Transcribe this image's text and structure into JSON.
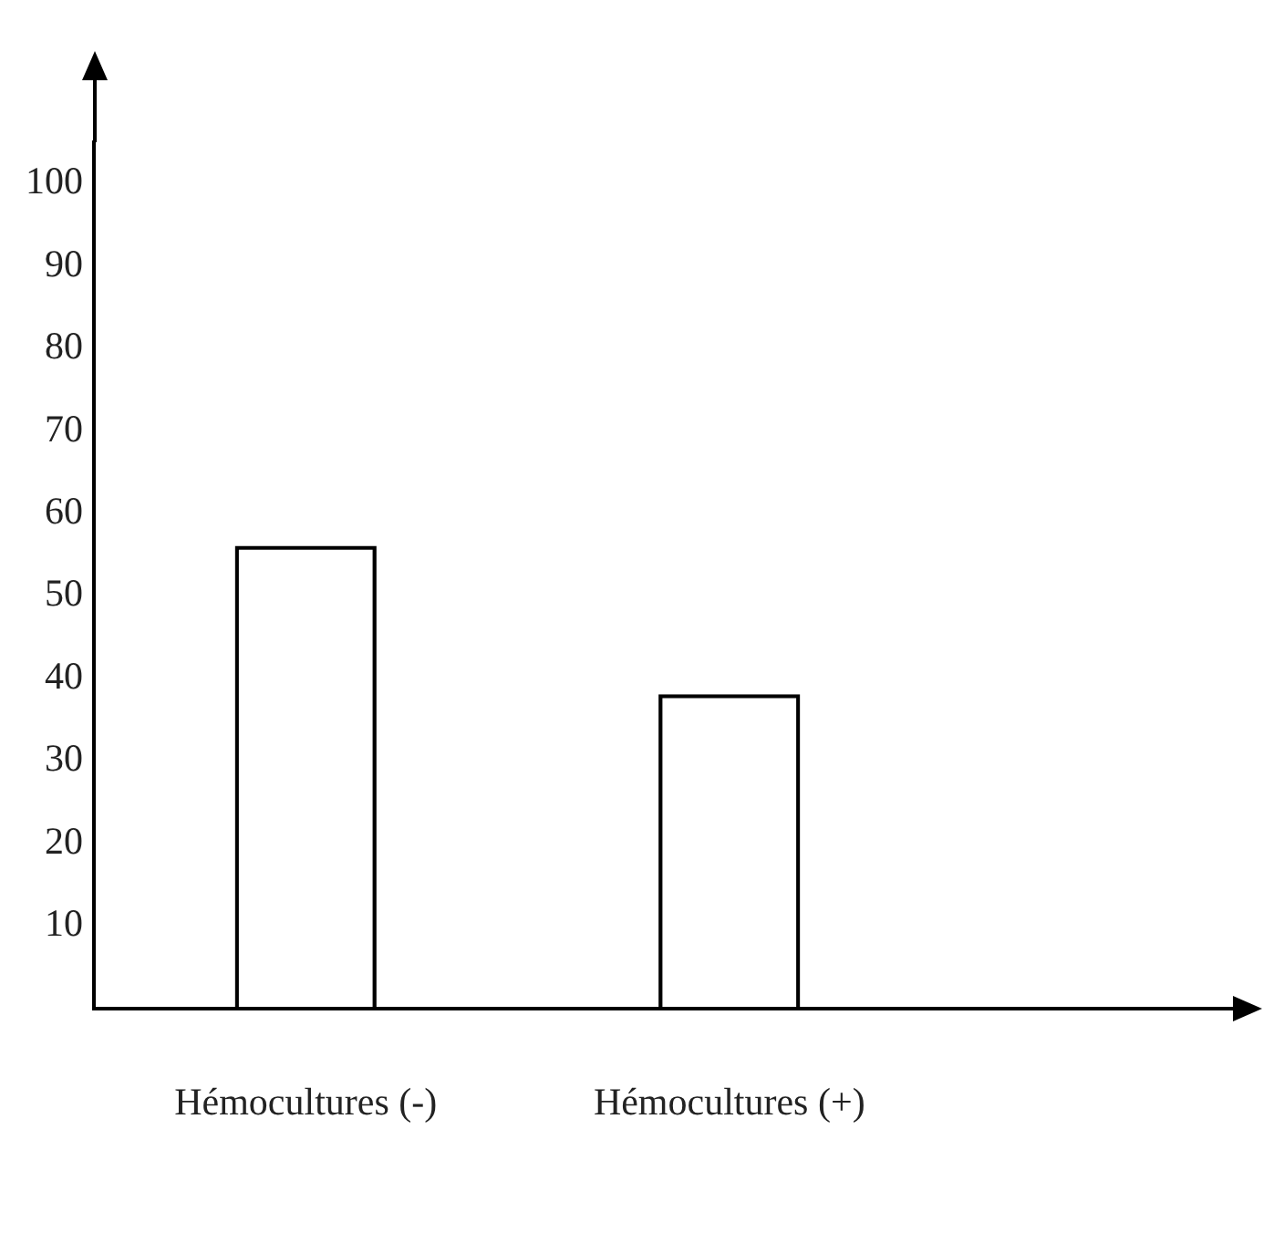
{
  "chart_data": {
    "type": "bar",
    "categories": [
      "Hémocultures (-)",
      "Hémocultures (+)"
    ],
    "values": [
      56,
      38
    ],
    "color": "#000000",
    "ylim": [
      0,
      105
    ],
    "yticks": [
      10,
      20,
      30,
      40,
      50,
      60,
      70,
      80,
      90,
      100
    ]
  }
}
